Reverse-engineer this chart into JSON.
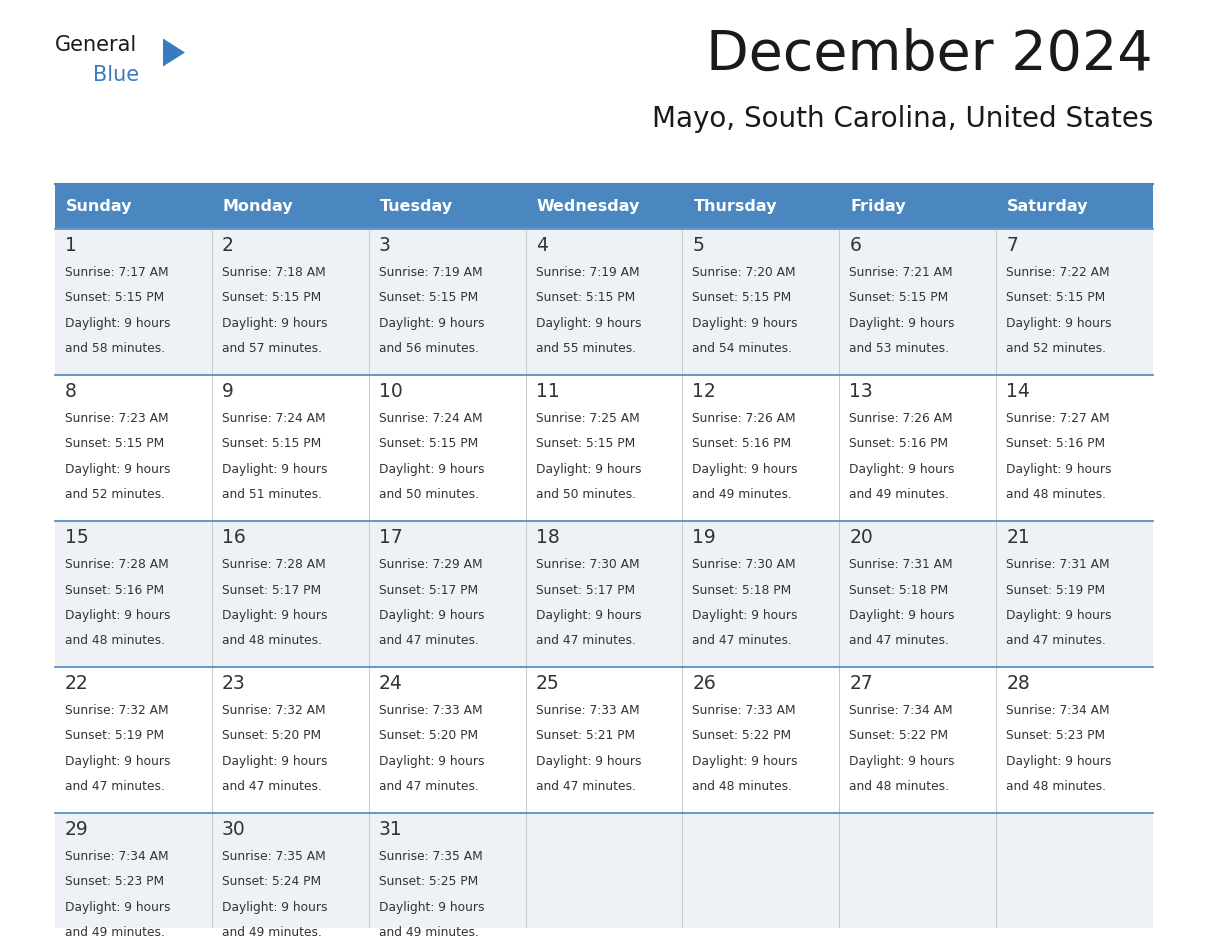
{
  "title": "December 2024",
  "subtitle": "Mayo, South Carolina, United States",
  "header_color": "#4a86c0",
  "header_text_color": "#ffffff",
  "cell_bg_even": "#eef2f7",
  "cell_bg_odd": "#ffffff",
  "text_color": "#333333",
  "border_color": "#4a86c0",
  "separator_color": "#4a86c0",
  "days_of_week": [
    "Sunday",
    "Monday",
    "Tuesday",
    "Wednesday",
    "Thursday",
    "Friday",
    "Saturday"
  ],
  "weeks": [
    [
      {
        "day": 1,
        "sunrise": "7:17 AM",
        "sunset": "5:15 PM",
        "daylight_h": "9 hours",
        "daylight_m": "and 58 minutes."
      },
      {
        "day": 2,
        "sunrise": "7:18 AM",
        "sunset": "5:15 PM",
        "daylight_h": "9 hours",
        "daylight_m": "and 57 minutes."
      },
      {
        "day": 3,
        "sunrise": "7:19 AM",
        "sunset": "5:15 PM",
        "daylight_h": "9 hours",
        "daylight_m": "and 56 minutes."
      },
      {
        "day": 4,
        "sunrise": "7:19 AM",
        "sunset": "5:15 PM",
        "daylight_h": "9 hours",
        "daylight_m": "and 55 minutes."
      },
      {
        "day": 5,
        "sunrise": "7:20 AM",
        "sunset": "5:15 PM",
        "daylight_h": "9 hours",
        "daylight_m": "and 54 minutes."
      },
      {
        "day": 6,
        "sunrise": "7:21 AM",
        "sunset": "5:15 PM",
        "daylight_h": "9 hours",
        "daylight_m": "and 53 minutes."
      },
      {
        "day": 7,
        "sunrise": "7:22 AM",
        "sunset": "5:15 PM",
        "daylight_h": "9 hours",
        "daylight_m": "and 52 minutes."
      }
    ],
    [
      {
        "day": 8,
        "sunrise": "7:23 AM",
        "sunset": "5:15 PM",
        "daylight_h": "9 hours",
        "daylight_m": "and 52 minutes."
      },
      {
        "day": 9,
        "sunrise": "7:24 AM",
        "sunset": "5:15 PM",
        "daylight_h": "9 hours",
        "daylight_m": "and 51 minutes."
      },
      {
        "day": 10,
        "sunrise": "7:24 AM",
        "sunset": "5:15 PM",
        "daylight_h": "9 hours",
        "daylight_m": "and 50 minutes."
      },
      {
        "day": 11,
        "sunrise": "7:25 AM",
        "sunset": "5:15 PM",
        "daylight_h": "9 hours",
        "daylight_m": "and 50 minutes."
      },
      {
        "day": 12,
        "sunrise": "7:26 AM",
        "sunset": "5:16 PM",
        "daylight_h": "9 hours",
        "daylight_m": "and 49 minutes."
      },
      {
        "day": 13,
        "sunrise": "7:26 AM",
        "sunset": "5:16 PM",
        "daylight_h": "9 hours",
        "daylight_m": "and 49 minutes."
      },
      {
        "day": 14,
        "sunrise": "7:27 AM",
        "sunset": "5:16 PM",
        "daylight_h": "9 hours",
        "daylight_m": "and 48 minutes."
      }
    ],
    [
      {
        "day": 15,
        "sunrise": "7:28 AM",
        "sunset": "5:16 PM",
        "daylight_h": "9 hours",
        "daylight_m": "and 48 minutes."
      },
      {
        "day": 16,
        "sunrise": "7:28 AM",
        "sunset": "5:17 PM",
        "daylight_h": "9 hours",
        "daylight_m": "and 48 minutes."
      },
      {
        "day": 17,
        "sunrise": "7:29 AM",
        "sunset": "5:17 PM",
        "daylight_h": "9 hours",
        "daylight_m": "and 47 minutes."
      },
      {
        "day": 18,
        "sunrise": "7:30 AM",
        "sunset": "5:17 PM",
        "daylight_h": "9 hours",
        "daylight_m": "and 47 minutes."
      },
      {
        "day": 19,
        "sunrise": "7:30 AM",
        "sunset": "5:18 PM",
        "daylight_h": "9 hours",
        "daylight_m": "and 47 minutes."
      },
      {
        "day": 20,
        "sunrise": "7:31 AM",
        "sunset": "5:18 PM",
        "daylight_h": "9 hours",
        "daylight_m": "and 47 minutes."
      },
      {
        "day": 21,
        "sunrise": "7:31 AM",
        "sunset": "5:19 PM",
        "daylight_h": "9 hours",
        "daylight_m": "and 47 minutes."
      }
    ],
    [
      {
        "day": 22,
        "sunrise": "7:32 AM",
        "sunset": "5:19 PM",
        "daylight_h": "9 hours",
        "daylight_m": "and 47 minutes."
      },
      {
        "day": 23,
        "sunrise": "7:32 AM",
        "sunset": "5:20 PM",
        "daylight_h": "9 hours",
        "daylight_m": "and 47 minutes."
      },
      {
        "day": 24,
        "sunrise": "7:33 AM",
        "sunset": "5:20 PM",
        "daylight_h": "9 hours",
        "daylight_m": "and 47 minutes."
      },
      {
        "day": 25,
        "sunrise": "7:33 AM",
        "sunset": "5:21 PM",
        "daylight_h": "9 hours",
        "daylight_m": "and 47 minutes."
      },
      {
        "day": 26,
        "sunrise": "7:33 AM",
        "sunset": "5:22 PM",
        "daylight_h": "9 hours",
        "daylight_m": "and 48 minutes."
      },
      {
        "day": 27,
        "sunrise": "7:34 AM",
        "sunset": "5:22 PM",
        "daylight_h": "9 hours",
        "daylight_m": "and 48 minutes."
      },
      {
        "day": 28,
        "sunrise": "7:34 AM",
        "sunset": "5:23 PM",
        "daylight_h": "9 hours",
        "daylight_m": "and 48 minutes."
      }
    ],
    [
      {
        "day": 29,
        "sunrise": "7:34 AM",
        "sunset": "5:23 PM",
        "daylight_h": "9 hours",
        "daylight_m": "and 49 minutes."
      },
      {
        "day": 30,
        "sunrise": "7:35 AM",
        "sunset": "5:24 PM",
        "daylight_h": "9 hours",
        "daylight_m": "and 49 minutes."
      },
      {
        "day": 31,
        "sunrise": "7:35 AM",
        "sunset": "5:25 PM",
        "daylight_h": "9 hours",
        "daylight_m": "and 49 minutes."
      },
      null,
      null,
      null,
      null
    ]
  ],
  "logo_general_color": "#1a1a1a",
  "logo_blue_color": "#3a7abf",
  "logo_triangle_color": "#3a7abf"
}
